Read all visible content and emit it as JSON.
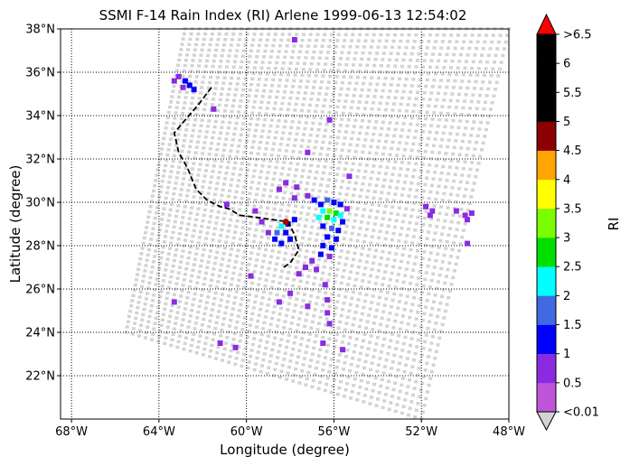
{
  "title": "SSMI F-14 Rain Index (RI) Arlene 1999-06-13 12:54:02",
  "xlabel": "Longitude (degree)",
  "ylabel": "Latitude (degree)",
  "colorbar": {
    "label": "RI",
    "ticks": [
      "<0.01",
      "0.5",
      "1",
      "1.5",
      "2",
      "2.5",
      "3",
      "3.5",
      "4",
      "4.5",
      "5",
      "5.5",
      "6",
      ">6.5"
    ],
    "under_color": "#d3d3d3",
    "over_color": "#ff0000",
    "colors": [
      "#bf55d9",
      "#8a2be2",
      "#0000ff",
      "#4169e1",
      "#00ffff",
      "#00e000",
      "#7cfc00",
      "#ffff00",
      "#ffa500",
      "#8b0000",
      "#000000",
      "#000000",
      "#000000"
    ]
  },
  "map_extent": {
    "lon": [
      -68.5,
      -48
    ],
    "lat": [
      20,
      38
    ]
  },
  "x_ticks": [
    {
      "lon": -68,
      "label": "68°W"
    },
    {
      "lon": -64,
      "label": "64°W"
    },
    {
      "lon": -60,
      "label": "60°W"
    },
    {
      "lon": -56,
      "label": "56°W"
    },
    {
      "lon": -52,
      "label": "52°W"
    },
    {
      "lon": -48,
      "label": "48°W"
    }
  ],
  "y_ticks": [
    {
      "lat": 22,
      "label": "22°N"
    },
    {
      "lat": 24,
      "label": "24°N"
    },
    {
      "lat": 26,
      "label": "26°N"
    },
    {
      "lat": 28,
      "label": "28°N"
    },
    {
      "lat": 30,
      "label": "30°N"
    },
    {
      "lat": 32,
      "label": "32°N"
    },
    {
      "lat": 34,
      "label": "34°N"
    },
    {
      "lat": 36,
      "label": "36°N"
    },
    {
      "lat": 38,
      "label": "38°N"
    }
  ],
  "swath_corners": {
    "top_left": [
      -62.8,
      38
    ],
    "top_right": [
      -48,
      38
    ],
    "bottom_right": [
      -52,
      20
    ],
    "bottom_left": [
      -65.5,
      24
    ]
  },
  "track": [
    [
      -61.6,
      35.3
    ],
    [
      -62.2,
      34.5
    ],
    [
      -62.8,
      33.8
    ],
    [
      -63.3,
      33.2
    ],
    [
      -63.1,
      32.3
    ],
    [
      -62.7,
      31.6
    ],
    [
      -62.3,
      30.6
    ],
    [
      -61.8,
      30.1
    ],
    [
      -61.2,
      29.8
    ],
    [
      -60.8,
      29.7
    ],
    [
      -60.3,
      29.4
    ],
    [
      -59.5,
      29.3
    ],
    [
      -58.8,
      29.2
    ],
    [
      -58.1,
      29.1
    ],
    [
      -57.8,
      28.5
    ],
    [
      -57.6,
      27.8
    ],
    [
      -58.0,
      27.2
    ],
    [
      -58.3,
      27.0
    ]
  ],
  "storm_center": [
    -58.2,
    29.1
  ],
  "rain_cells": [
    {
      "lon": -63.3,
      "lat": 35.6,
      "ri": 0.6
    },
    {
      "lon": -63.1,
      "lat": 35.8,
      "ri": 0.6
    },
    {
      "lon": -62.8,
      "lat": 35.6,
      "ri": 1.0
    },
    {
      "lon": -62.6,
      "lat": 35.4,
      "ri": 1.2
    },
    {
      "lon": -62.9,
      "lat": 35.3,
      "ri": 0.6
    },
    {
      "lon": -62.4,
      "lat": 35.2,
      "ri": 1.0
    },
    {
      "lon": -61.5,
      "lat": 34.3,
      "ri": 0.5
    },
    {
      "lon": -57.8,
      "lat": 37.5,
      "ri": 0.5
    },
    {
      "lon": -56.2,
      "lat": 33.8,
      "ri": 0.5
    },
    {
      "lon": -57.2,
      "lat": 32.3,
      "ri": 0.5
    },
    {
      "lon": -55.3,
      "lat": 31.2,
      "ri": 0.5
    },
    {
      "lon": -58.2,
      "lat": 30.9,
      "ri": 0.5
    },
    {
      "lon": -58.5,
      "lat": 30.6,
      "ri": 0.6
    },
    {
      "lon": -57.7,
      "lat": 30.7,
      "ri": 0.6
    },
    {
      "lon": -57.2,
      "lat": 30.3,
      "ri": 0.8
    },
    {
      "lon": -57.8,
      "lat": 30.2,
      "ri": 0.6
    },
    {
      "lon": -56.9,
      "lat": 30.1,
      "ri": 1.0
    },
    {
      "lon": -56.6,
      "lat": 29.9,
      "ri": 1.4
    },
    {
      "lon": -56.3,
      "lat": 30.1,
      "ri": 1.6
    },
    {
      "lon": -56.0,
      "lat": 30.0,
      "ri": 1.2
    },
    {
      "lon": -55.7,
      "lat": 29.9,
      "ri": 1.0
    },
    {
      "lon": -55.4,
      "lat": 29.7,
      "ri": 0.6
    },
    {
      "lon": -56.5,
      "lat": 29.6,
      "ri": 2.2
    },
    {
      "lon": -56.2,
      "lat": 29.6,
      "ri": 3.2
    },
    {
      "lon": -55.9,
      "lat": 29.5,
      "ri": 2.8
    },
    {
      "lon": -55.7,
      "lat": 29.4,
      "ri": 2.0
    },
    {
      "lon": -56.7,
      "lat": 29.3,
      "ri": 2.0
    },
    {
      "lon": -56.3,
      "lat": 29.3,
      "ri": 2.6
    },
    {
      "lon": -56.0,
      "lat": 29.2,
      "ri": 2.2
    },
    {
      "lon": -55.6,
      "lat": 29.1,
      "ri": 1.4
    },
    {
      "lon": -56.5,
      "lat": 28.9,
      "ri": 1.2
    },
    {
      "lon": -56.1,
      "lat": 28.8,
      "ri": 1.6
    },
    {
      "lon": -55.8,
      "lat": 28.7,
      "ri": 1.2
    },
    {
      "lon": -56.3,
      "lat": 28.4,
      "ri": 1.2
    },
    {
      "lon": -55.9,
      "lat": 28.3,
      "ri": 1.0
    },
    {
      "lon": -56.5,
      "lat": 28.0,
      "ri": 1.2
    },
    {
      "lon": -56.1,
      "lat": 27.9,
      "ri": 1.2
    },
    {
      "lon": -56.6,
      "lat": 27.6,
      "ri": 1.0
    },
    {
      "lon": -56.2,
      "lat": 27.5,
      "ri": 0.9
    },
    {
      "lon": -57.0,
      "lat": 27.3,
      "ri": 0.8
    },
    {
      "lon": -57.3,
      "lat": 27.0,
      "ri": 0.9
    },
    {
      "lon": -56.8,
      "lat": 26.9,
      "ri": 0.6
    },
    {
      "lon": -57.6,
      "lat": 26.7,
      "ri": 0.6
    },
    {
      "lon": -57.8,
      "lat": 29.2,
      "ri": 1.0
    },
    {
      "lon": -58.1,
      "lat": 29.0,
      "ri": 1.4
    },
    {
      "lon": -58.4,
      "lat": 28.9,
      "ri": 2.4
    },
    {
      "lon": -58.6,
      "lat": 28.6,
      "ri": 1.8
    },
    {
      "lon": -58.2,
      "lat": 28.6,
      "ri": 1.2
    },
    {
      "lon": -58.0,
      "lat": 28.3,
      "ri": 1.0
    },
    {
      "lon": -58.7,
      "lat": 28.3,
      "ri": 1.2
    },
    {
      "lon": -58.4,
      "lat": 28.1,
      "ri": 1.0
    },
    {
      "lon": -59.0,
      "lat": 28.6,
      "ri": 0.6
    },
    {
      "lon": -59.3,
      "lat": 29.1,
      "ri": 0.5
    },
    {
      "lon": -59.6,
      "lat": 29.6,
      "ri": 0.5
    },
    {
      "lon": -56.4,
      "lat": 26.2,
      "ri": 0.6
    },
    {
      "lon": -56.3,
      "lat": 25.5,
      "ri": 0.6
    },
    {
      "lon": -56.3,
      "lat": 24.9,
      "ri": 0.8
    },
    {
      "lon": -56.2,
      "lat": 24.4,
      "ri": 0.7
    },
    {
      "lon": -58.0,
      "lat": 25.8,
      "ri": 0.5
    },
    {
      "lon": -58.5,
      "lat": 25.4,
      "ri": 0.6
    },
    {
      "lon": -57.2,
      "lat": 25.2,
      "ri": 0.5
    },
    {
      "lon": -51.8,
      "lat": 29.8,
      "ri": 0.6
    },
    {
      "lon": -51.5,
      "lat": 29.6,
      "ri": 0.6
    },
    {
      "lon": -51.6,
      "lat": 29.4,
      "ri": 0.5
    },
    {
      "lon": -50.4,
      "lat": 29.6,
      "ri": 0.5
    },
    {
      "lon": -50.0,
      "lat": 29.4,
      "ri": 0.6
    },
    {
      "lon": -49.7,
      "lat": 29.5,
      "ri": 0.6
    },
    {
      "lon": -49.9,
      "lat": 29.2,
      "ri": 0.6
    },
    {
      "lon": -49.9,
      "lat": 28.1,
      "ri": 0.6
    },
    {
      "lon": -63.3,
      "lat": 25.4,
      "ri": 0.5
    },
    {
      "lon": -61.2,
      "lat": 23.5,
      "ri": 0.5
    },
    {
      "lon": -60.5,
      "lat": 23.3,
      "ri": 0.5
    },
    {
      "lon": -56.5,
      "lat": 23.5,
      "ri": 0.5
    },
    {
      "lon": -55.6,
      "lat": 23.2,
      "ri": 0.5
    },
    {
      "lon": -59.8,
      "lat": 26.6,
      "ri": 0.5
    },
    {
      "lon": -60.9,
      "lat": 29.9,
      "ri": 0.5
    }
  ]
}
